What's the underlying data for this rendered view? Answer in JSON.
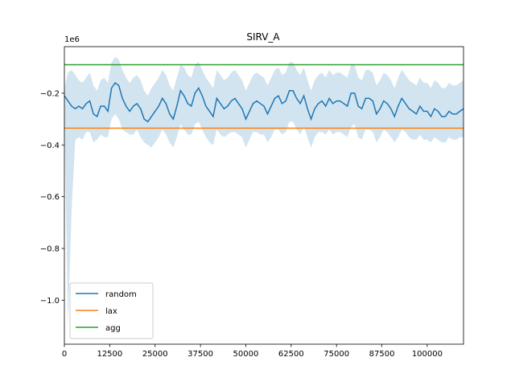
{
  "chart_data": {
    "type": "line",
    "title": "SIRV_A",
    "xlabel": "",
    "ylabel": "",
    "y_scale_label": "1e6",
    "xlim": [
      0,
      110000
    ],
    "ylim": [
      -1.17,
      -0.02
    ],
    "x_ticks": [
      0,
      12500,
      25000,
      37500,
      50000,
      62500,
      75000,
      87500,
      100000
    ],
    "x_tick_labels": [
      "0",
      "12500",
      "25000",
      "37500",
      "50000",
      "62500",
      "75000",
      "87500",
      "100000"
    ],
    "y_ticks": [
      -0.2,
      -0.4,
      -0.6,
      -0.8,
      -1.0
    ],
    "y_tick_labels": [
      "−0.2",
      "−0.4",
      "−0.6",
      "−0.8",
      "−1.0"
    ],
    "grid": false,
    "legend": {
      "position": "lower-left",
      "entries": [
        "random",
        "lax",
        "agg"
      ]
    },
    "colors": {
      "random": "#1f77b4",
      "lax": "#ff7f0e",
      "agg": "#2ca02c",
      "band": "#1f77b4"
    },
    "series": [
      {
        "name": "lax",
        "kind": "hline",
        "y": -0.335
      },
      {
        "name": "agg",
        "kind": "hline",
        "y": -0.09
      },
      {
        "name": "random",
        "kind": "line",
        "x": [
          0,
          1000,
          2000,
          3000,
          4000,
          5000,
          6000,
          7000,
          8000,
          9000,
          10000,
          11000,
          12000,
          13000,
          14000,
          15000,
          16000,
          17000,
          18000,
          19000,
          20000,
          21000,
          22000,
          23000,
          24000,
          25000,
          26000,
          27000,
          28000,
          29000,
          30000,
          31000,
          32000,
          33000,
          34000,
          35000,
          36000,
          37000,
          38000,
          39000,
          40000,
          41000,
          42000,
          43000,
          44000,
          45000,
          46000,
          47000,
          48000,
          49000,
          50000,
          51000,
          52000,
          53000,
          54000,
          55000,
          56000,
          57000,
          58000,
          59000,
          60000,
          61000,
          62000,
          63000,
          64000,
          65000,
          66000,
          67000,
          68000,
          69000,
          70000,
          71000,
          72000,
          73000,
          74000,
          75000,
          76000,
          77000,
          78000,
          79000,
          80000,
          81000,
          82000,
          83000,
          84000,
          85000,
          86000,
          87000,
          88000,
          89000,
          90000,
          91000,
          92000,
          93000,
          94000,
          95000,
          96000,
          97000,
          98000,
          99000,
          100000,
          101000,
          102000,
          103000,
          104000,
          105000,
          106000,
          107000,
          108000,
          109000,
          110000
        ],
        "y": [
          -0.21,
          -0.23,
          -0.25,
          -0.26,
          -0.25,
          -0.26,
          -0.24,
          -0.23,
          -0.28,
          -0.29,
          -0.25,
          -0.25,
          -0.27,
          -0.18,
          -0.16,
          -0.17,
          -0.22,
          -0.25,
          -0.27,
          -0.25,
          -0.24,
          -0.26,
          -0.3,
          -0.31,
          -0.29,
          -0.27,
          -0.25,
          -0.22,
          -0.24,
          -0.28,
          -0.3,
          -0.25,
          -0.19,
          -0.21,
          -0.24,
          -0.25,
          -0.2,
          -0.18,
          -0.21,
          -0.25,
          -0.27,
          -0.29,
          -0.22,
          -0.24,
          -0.26,
          -0.25,
          -0.23,
          -0.22,
          -0.24,
          -0.26,
          -0.3,
          -0.27,
          -0.24,
          -0.23,
          -0.24,
          -0.25,
          -0.28,
          -0.25,
          -0.22,
          -0.21,
          -0.24,
          -0.23,
          -0.19,
          -0.19,
          -0.22,
          -0.24,
          -0.21,
          -0.26,
          -0.3,
          -0.26,
          -0.24,
          -0.23,
          -0.25,
          -0.22,
          -0.24,
          -0.23,
          -0.23,
          -0.24,
          -0.25,
          -0.2,
          -0.2,
          -0.25,
          -0.26,
          -0.22,
          -0.22,
          -0.23,
          -0.28,
          -0.26,
          -0.23,
          -0.24,
          -0.26,
          -0.29,
          -0.25,
          -0.22,
          -0.24,
          -0.26,
          -0.27,
          -0.28,
          -0.25,
          -0.27,
          -0.27,
          -0.29,
          -0.26,
          -0.27,
          -0.29,
          -0.29,
          -0.27,
          -0.28,
          -0.28,
          -0.27,
          -0.26
        ],
        "lower": [
          -0.26,
          -1.1,
          -0.65,
          -0.38,
          -0.37,
          -0.38,
          -0.35,
          -0.35,
          -0.39,
          -0.38,
          -0.36,
          -0.37,
          -0.37,
          -0.3,
          -0.28,
          -0.3,
          -0.34,
          -0.35,
          -0.36,
          -0.36,
          -0.34,
          -0.37,
          -0.39,
          -0.4,
          -0.41,
          -0.39,
          -0.37,
          -0.34,
          -0.36,
          -0.39,
          -0.41,
          -0.37,
          -0.32,
          -0.34,
          -0.36,
          -0.36,
          -0.32,
          -0.31,
          -0.34,
          -0.37,
          -0.39,
          -0.4,
          -0.34,
          -0.36,
          -0.37,
          -0.36,
          -0.35,
          -0.35,
          -0.36,
          -0.37,
          -0.41,
          -0.38,
          -0.35,
          -0.35,
          -0.36,
          -0.36,
          -0.39,
          -0.37,
          -0.34,
          -0.34,
          -0.36,
          -0.35,
          -0.31,
          -0.31,
          -0.34,
          -0.36,
          -0.33,
          -0.37,
          -0.41,
          -0.37,
          -0.35,
          -0.35,
          -0.36,
          -0.34,
          -0.36,
          -0.35,
          -0.35,
          -0.36,
          -0.37,
          -0.33,
          -0.32,
          -0.37,
          -0.38,
          -0.34,
          -0.34,
          -0.35,
          -0.39,
          -0.37,
          -0.34,
          -0.35,
          -0.37,
          -0.39,
          -0.37,
          -0.34,
          -0.35,
          -0.37,
          -0.38,
          -0.38,
          -0.36,
          -0.38,
          -0.38,
          -0.39,
          -0.37,
          -0.38,
          -0.39,
          -0.39,
          -0.37,
          -0.38,
          -0.38,
          -0.37,
          -0.37
        ],
        "upper": [
          -0.18,
          -0.12,
          -0.11,
          -0.13,
          -0.15,
          -0.16,
          -0.14,
          -0.12,
          -0.17,
          -0.19,
          -0.15,
          -0.14,
          -0.16,
          -0.08,
          -0.06,
          -0.07,
          -0.11,
          -0.14,
          -0.16,
          -0.14,
          -0.13,
          -0.15,
          -0.19,
          -0.21,
          -0.18,
          -0.16,
          -0.14,
          -0.11,
          -0.13,
          -0.17,
          -0.19,
          -0.14,
          -0.09,
          -0.1,
          -0.13,
          -0.14,
          -0.09,
          -0.08,
          -0.11,
          -0.14,
          -0.16,
          -0.18,
          -0.11,
          -0.13,
          -0.15,
          -0.14,
          -0.12,
          -0.11,
          -0.13,
          -0.15,
          -0.19,
          -0.16,
          -0.13,
          -0.12,
          -0.13,
          -0.14,
          -0.17,
          -0.14,
          -0.11,
          -0.1,
          -0.13,
          -0.12,
          -0.08,
          -0.08,
          -0.11,
          -0.13,
          -0.1,
          -0.15,
          -0.19,
          -0.15,
          -0.13,
          -0.12,
          -0.14,
          -0.11,
          -0.13,
          -0.12,
          -0.12,
          -0.13,
          -0.14,
          -0.09,
          -0.09,
          -0.14,
          -0.15,
          -0.11,
          -0.11,
          -0.12,
          -0.17,
          -0.15,
          -0.12,
          -0.13,
          -0.15,
          -0.18,
          -0.14,
          -0.11,
          -0.13,
          -0.15,
          -0.16,
          -0.17,
          -0.14,
          -0.16,
          -0.16,
          -0.18,
          -0.15,
          -0.16,
          -0.18,
          -0.18,
          -0.16,
          -0.17,
          -0.17,
          -0.16,
          -0.15
        ]
      }
    ]
  }
}
